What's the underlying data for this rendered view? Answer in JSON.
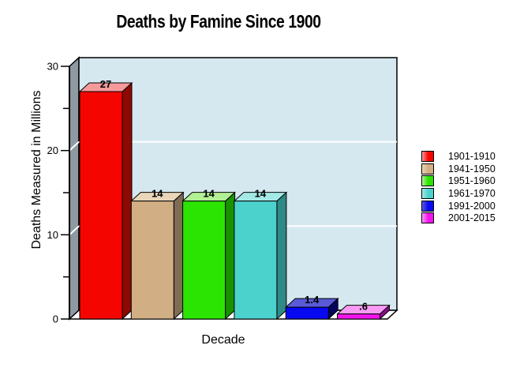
{
  "chart_data": {
    "type": "bar",
    "style": "3d-column",
    "title": "Deaths by Famine Since 1900",
    "xlabel": "Decade",
    "ylabel": "Deaths Measured in Millions",
    "ylim": [
      0,
      30
    ],
    "yticks": [
      0,
      10,
      20,
      30
    ],
    "ytick_labels": [
      "0",
      "10",
      "20",
      "30"
    ],
    "minor_yticks": [
      5,
      15,
      25
    ],
    "gridlines_at": [
      10,
      20
    ],
    "grid": true,
    "legend_position": "right",
    "categories": [
      "1901-1910",
      "1941-1950",
      "1951-1960",
      "1961-1970",
      "1991-2000",
      "2001-2015"
    ],
    "values": [
      27,
      14,
      14,
      14,
      1.4,
      0.6
    ],
    "value_labels": [
      "27",
      "14",
      "14",
      "14",
      "1.4",
      ".6"
    ],
    "colors": [
      {
        "front": "#f50500",
        "top": "#f49a9a",
        "side": "#8e0903"
      },
      {
        "front": "#d2ae84",
        "top": "#e9d6b8",
        "side": "#7e6c54"
      },
      {
        "front": "#2ce402",
        "top": "#b2f095",
        "side": "#189200"
      },
      {
        "front": "#4bd2cd",
        "top": "#a3e9e6",
        "side": "#2e8a87"
      },
      {
        "front": "#0909f1",
        "top": "#5a5ad8",
        "side": "#05055e"
      },
      {
        "front": "#f313ee",
        "top": "#f99af5",
        "side": "#8f0c8c"
      }
    ],
    "back_wall_color": "#d5e8f0",
    "side_wall_color": "#8f99a1",
    "floor_color": "#ffffff",
    "gridline_color": "#ffffff",
    "axis_color": "#000000",
    "label_color": "#000000"
  }
}
